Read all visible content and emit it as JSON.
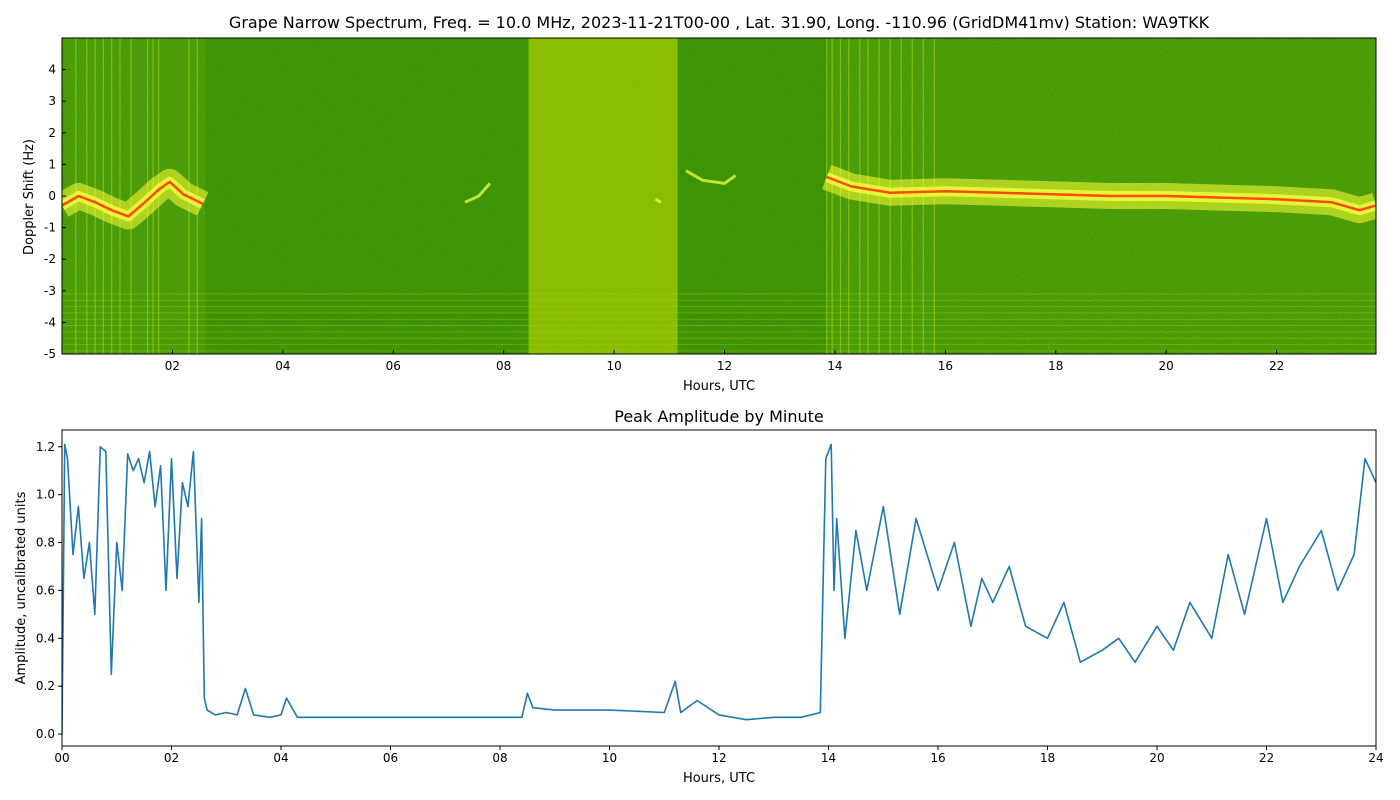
{
  "chart_data": [
    {
      "type": "heatmap",
      "title": "Grape Narrow Spectrum, Freq. = 10.0 MHz, 2023-11-21T00-00 , Lat.  31.90, Long. -110.96 (GridDM41mv) Station: WA9TKK",
      "xlabel": "Hours, UTC",
      "ylabel": "Doppler Shift (Hz)",
      "xlim": [
        0,
        23.8
      ],
      "ylim": [
        -5,
        5
      ],
      "x_ticks": [
        "02",
        "04",
        "06",
        "08",
        "10",
        "12",
        "14",
        "16",
        "18",
        "20",
        "22"
      ],
      "x_tick_values": [
        2,
        4,
        6,
        8,
        10,
        12,
        14,
        16,
        18,
        20,
        22
      ],
      "y_ticks": [
        "-5",
        "-4",
        "-3",
        "-2",
        "-1",
        "0",
        "1",
        "2",
        "3",
        "4"
      ],
      "y_tick_values": [
        -5,
        -4,
        -3,
        -2,
        -1,
        0,
        1,
        2,
        3,
        4
      ],
      "colors": {
        "background": "#3d9400",
        "bright_band": "#c8e000",
        "signal": "#ffff33",
        "peak": "#ff4a00"
      },
      "bright_band_hours": [
        8.45,
        11.15
      ],
      "dark_gap_hours": [
        2.6,
        13.85
      ],
      "doppler_trace": [
        [
          0.0,
          -0.3
        ],
        [
          0.3,
          0.0
        ],
        [
          0.6,
          -0.2
        ],
        [
          0.9,
          -0.45
        ],
        [
          1.2,
          -0.65
        ],
        [
          1.5,
          -0.2
        ],
        [
          1.75,
          0.2
        ],
        [
          1.95,
          0.45
        ],
        [
          2.2,
          0.05
        ],
        [
          2.55,
          -0.25
        ],
        [
          13.85,
          0.6
        ],
        [
          14.3,
          0.3
        ],
        [
          15.0,
          0.1
        ],
        [
          16.0,
          0.15
        ],
        [
          17.0,
          0.1
        ],
        [
          18.0,
          0.05
        ],
        [
          19.0,
          0.0
        ],
        [
          20.0,
          0.0
        ],
        [
          21.0,
          -0.05
        ],
        [
          22.0,
          -0.1
        ],
        [
          23.0,
          -0.2
        ],
        [
          23.5,
          -0.45
        ],
        [
          23.8,
          -0.3
        ]
      ],
      "faint_traces": [
        [
          [
            7.3,
            -0.2
          ],
          [
            7.55,
            0.0
          ],
          [
            7.75,
            0.4
          ]
        ],
        [
          [
            11.3,
            0.8
          ],
          [
            11.6,
            0.5
          ],
          [
            12.0,
            0.4
          ],
          [
            12.2,
            0.65
          ]
        ],
        [
          [
            10.75,
            -0.1
          ],
          [
            10.85,
            -0.2
          ]
        ]
      ]
    },
    {
      "type": "line",
      "title": "Peak Amplitude by Minute",
      "xlabel": "Hours, UTC",
      "ylabel": "Amplitude, uncalibrated units",
      "xlim": [
        0,
        24
      ],
      "ylim": [
        -0.05,
        1.27
      ],
      "x_ticks": [
        "00",
        "02",
        "04",
        "06",
        "08",
        "10",
        "12",
        "14",
        "16",
        "18",
        "20",
        "22",
        "24"
      ],
      "x_tick_values": [
        0,
        2,
        4,
        6,
        8,
        10,
        12,
        14,
        16,
        18,
        20,
        22,
        24
      ],
      "y_ticks": [
        "0.0",
        "0.2",
        "0.4",
        "0.6",
        "0.8",
        "1.0",
        "1.2"
      ],
      "y_tick_values": [
        0.0,
        0.2,
        0.4,
        0.6,
        0.8,
        1.0,
        1.2
      ],
      "line_color": "#1f77b4",
      "series": [
        {
          "x": [
            0,
            0.05,
            0.1,
            0.2,
            0.3,
            0.4,
            0.5,
            0.6,
            0.7,
            0.8,
            0.9,
            1.0,
            1.1,
            1.2,
            1.3,
            1.4,
            1.5,
            1.6,
            1.7,
            1.8,
            1.9,
            2.0,
            2.1,
            2.2,
            2.3,
            2.4,
            2.5,
            2.55,
            2.6,
            2.65,
            2.8,
            3.0,
            3.2,
            3.35,
            3.5,
            3.8,
            4.0,
            4.1,
            4.3,
            5.0,
            6.0,
            7.0,
            8.0,
            8.4,
            8.5,
            8.6,
            9.0,
            10.0,
            11.0,
            11.2,
            11.3,
            11.6,
            12.0,
            12.5,
            13.0,
            13.5,
            13.85,
            13.95,
            14.05,
            14.1,
            14.15,
            14.3,
            14.5,
            14.7,
            15.0,
            15.3,
            15.6,
            16.0,
            16.3,
            16.6,
            16.8,
            17.0,
            17.3,
            17.6,
            18.0,
            18.3,
            18.6,
            19.0,
            19.3,
            19.6,
            20.0,
            20.3,
            20.6,
            21.0,
            21.3,
            21.6,
            22.0,
            22.3,
            22.6,
            23.0,
            23.3,
            23.6,
            23.8,
            24.0
          ],
          "y": [
            0.0,
            1.21,
            1.15,
            0.75,
            0.95,
            0.65,
            0.8,
            0.5,
            1.2,
            1.18,
            0.25,
            0.8,
            0.6,
            1.17,
            1.1,
            1.15,
            1.05,
            1.18,
            0.95,
            1.12,
            0.6,
            1.15,
            0.65,
            1.05,
            0.95,
            1.18,
            0.55,
            0.9,
            0.15,
            0.1,
            0.08,
            0.09,
            0.08,
            0.19,
            0.08,
            0.07,
            0.08,
            0.15,
            0.07,
            0.07,
            0.07,
            0.07,
            0.07,
            0.07,
            0.17,
            0.11,
            0.1,
            0.1,
            0.09,
            0.22,
            0.09,
            0.14,
            0.08,
            0.06,
            0.07,
            0.07,
            0.09,
            1.15,
            1.21,
            0.6,
            0.9,
            0.4,
            0.85,
            0.6,
            0.95,
            0.5,
            0.9,
            0.6,
            0.8,
            0.45,
            0.65,
            0.55,
            0.7,
            0.45,
            0.4,
            0.55,
            0.3,
            0.35,
            0.4,
            0.3,
            0.45,
            0.35,
            0.55,
            0.4,
            0.75,
            0.5,
            0.9,
            0.55,
            0.7,
            0.85,
            0.6,
            0.75,
            1.15,
            1.05
          ]
        }
      ]
    }
  ]
}
